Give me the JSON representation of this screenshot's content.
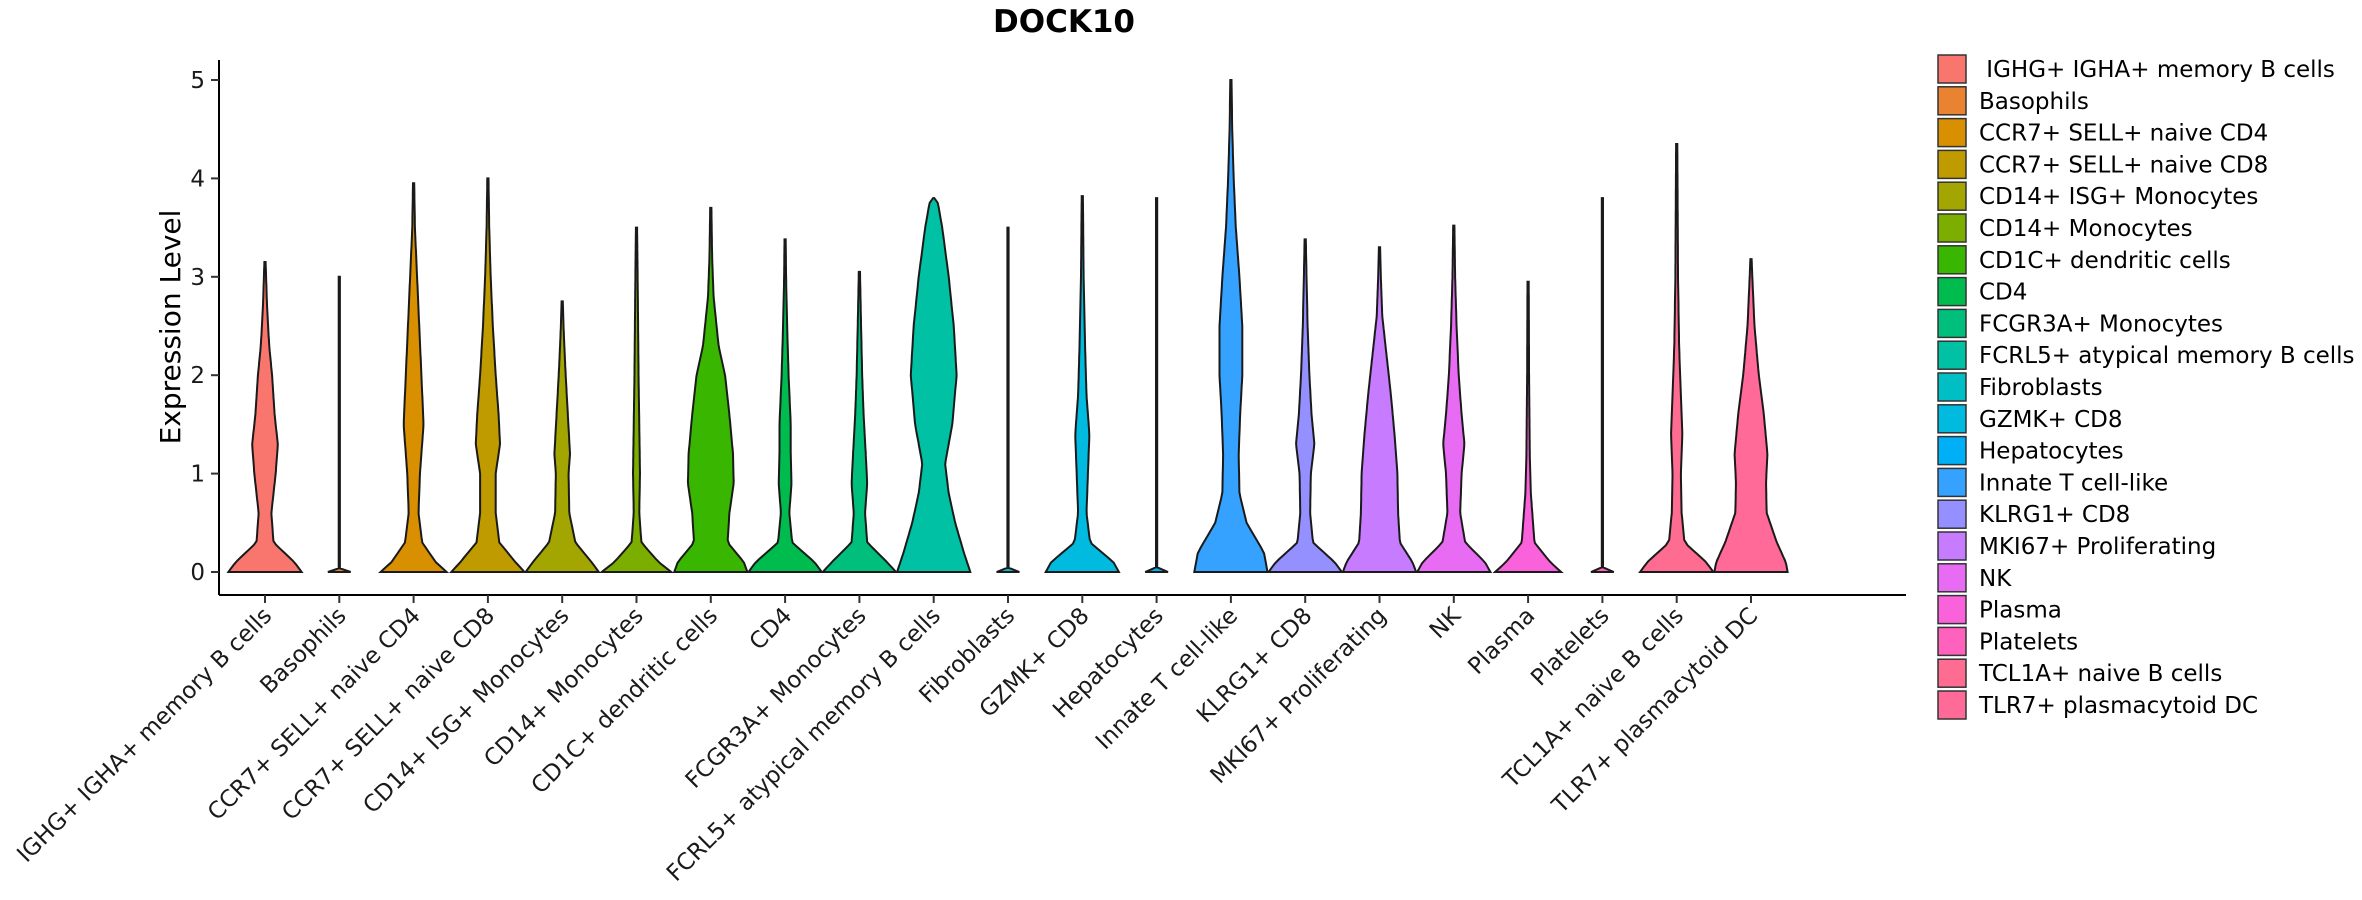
{
  "chart_data": {
    "type": "violin",
    "title": "DOCK10",
    "xlabel": "",
    "ylabel": "Expression Level",
    "ylim": [
      -0.25,
      5.25
    ],
    "yticks": [
      0,
      1,
      2,
      3,
      4,
      5
    ],
    "grid": false,
    "legend_position": "right",
    "categories": [
      "IGHG+ IGHA+ memory B cells",
      "Basophils",
      "CCR7+ SELL+ naive CD4",
      "CCR7+ SELL+ naive CD8",
      "CD14+ ISG+ Monocytes",
      "CD14+ Monocytes",
      "CD1C+ dendritic cells",
      "CD4",
      "FCGR3A+ Monocytes",
      "FCRL5+ atypical memory B cells",
      "Fibroblasts",
      "GZMK+ CD8",
      "Hepatocytes",
      "Innate T cell-like",
      "KLRG1+ CD8",
      "MKI67+ Proliferating",
      "NK",
      "Plasma",
      "Platelets",
      "TCL1A+ naive B cells",
      "TLR7+ plasmacytoid DC"
    ],
    "legend_labels": [
      " IGHG+ IGHA+ memory B cells",
      "Basophils",
      "CCR7+ SELL+ naive CD4",
      "CCR7+ SELL+ naive CD8",
      "CD14+ ISG+ Monocytes",
      "CD14+ Monocytes",
      "CD1C+ dendritic cells",
      "CD4",
      "FCGR3A+ Monocytes",
      "FCRL5+ atypical memory B cells",
      "Fibroblasts",
      "GZMK+ CD8",
      "Hepatocytes",
      "Innate T cell-like",
      "KLRG1+ CD8",
      "MKI67+ Proliferating",
      "NK",
      "Plasma",
      "Platelets",
      "TCL1A+ naive B cells",
      "TLR7+ plasmacytoid DC"
    ],
    "colors": [
      "#F8766D",
      "#EA8331",
      "#D89000",
      "#C09B00",
      "#A3A500",
      "#7CAE00",
      "#39B600",
      "#00BB4E",
      "#00BF7D",
      "#00C1A3",
      "#00BFC4",
      "#00BAE0",
      "#00B0F6",
      "#35A2FF",
      "#9590FF",
      "#C77CFF",
      "#E76BF3",
      "#FA62DB",
      "#FF62BC",
      "#FF6C91",
      "#FF6A98"
    ],
    "series": [
      {
        "name": "IGHG+ IGHA+ memory B cells",
        "max": 3.15,
        "profile": [
          [
            0,
            1.0
          ],
          [
            0.1,
            0.8
          ],
          [
            0.3,
            0.22
          ],
          [
            0.6,
            0.16
          ],
          [
            1.0,
            0.28
          ],
          [
            1.3,
            0.34
          ],
          [
            1.6,
            0.25
          ],
          [
            2.0,
            0.18
          ],
          [
            2.3,
            0.1
          ],
          [
            2.7,
            0.04
          ],
          [
            3.15,
            0.0
          ]
        ]
      },
      {
        "name": "Basophils",
        "max": 3.0,
        "profile": [
          [
            0,
            0.3
          ],
          [
            0.02,
            0.0
          ],
          [
            3.0,
            0.0
          ]
        ]
      },
      {
        "name": "CCR7+ SELL+ naive CD4",
        "max": 3.95,
        "profile": [
          [
            0,
            0.9
          ],
          [
            0.1,
            0.6
          ],
          [
            0.3,
            0.22
          ],
          [
            0.6,
            0.12
          ],
          [
            1.0,
            0.16
          ],
          [
            1.5,
            0.26
          ],
          [
            2.0,
            0.2
          ],
          [
            2.5,
            0.14
          ],
          [
            3.0,
            0.08
          ],
          [
            3.5,
            0.02
          ],
          [
            3.95,
            0.0
          ]
        ]
      },
      {
        "name": "CCR7+ SELL+ naive CD8",
        "max": 4.0,
        "profile": [
          [
            0,
            1.0
          ],
          [
            0.1,
            0.75
          ],
          [
            0.3,
            0.3
          ],
          [
            0.6,
            0.2
          ],
          [
            1.0,
            0.2
          ],
          [
            1.3,
            0.32
          ],
          [
            1.6,
            0.28
          ],
          [
            2.0,
            0.2
          ],
          [
            2.5,
            0.12
          ],
          [
            3.0,
            0.06
          ],
          [
            3.5,
            0.02
          ],
          [
            4.0,
            0.0
          ]
        ]
      },
      {
        "name": "CD14+ ISG+ Monocytes",
        "max": 2.75,
        "profile": [
          [
            0,
            1.0
          ],
          [
            0.1,
            0.8
          ],
          [
            0.3,
            0.35
          ],
          [
            0.6,
            0.18
          ],
          [
            1.0,
            0.16
          ],
          [
            1.2,
            0.2
          ],
          [
            1.6,
            0.14
          ],
          [
            2.0,
            0.08
          ],
          [
            2.4,
            0.03
          ],
          [
            2.75,
            0.0
          ]
        ]
      },
      {
        "name": "CD14+ Monocytes",
        "max": 3.5,
        "profile": [
          [
            0,
            0.95
          ],
          [
            0.1,
            0.6
          ],
          [
            0.3,
            0.12
          ],
          [
            0.6,
            0.06
          ],
          [
            1.0,
            0.08
          ],
          [
            1.5,
            0.06
          ],
          [
            2.0,
            0.04
          ],
          [
            2.8,
            0.02
          ],
          [
            3.5,
            0.0
          ]
        ]
      },
      {
        "name": "CD1C+ dendritic cells",
        "max": 3.7,
        "profile": [
          [
            0,
            1.0
          ],
          [
            0.1,
            0.9
          ],
          [
            0.3,
            0.45
          ],
          [
            0.6,
            0.5
          ],
          [
            0.9,
            0.62
          ],
          [
            1.2,
            0.6
          ],
          [
            1.6,
            0.5
          ],
          [
            2.0,
            0.38
          ],
          [
            2.3,
            0.2
          ],
          [
            2.8,
            0.06
          ],
          [
            3.2,
            0.02
          ],
          [
            3.7,
            0.0
          ]
        ]
      },
      {
        "name": "CD4",
        "max": 3.38,
        "profile": [
          [
            0,
            1.0
          ],
          [
            0.1,
            0.8
          ],
          [
            0.3,
            0.18
          ],
          [
            0.6,
            0.1
          ],
          [
            0.9,
            0.16
          ],
          [
            1.2,
            0.14
          ],
          [
            1.5,
            0.14
          ],
          [
            2.0,
            0.08
          ],
          [
            2.5,
            0.04
          ],
          [
            3.0,
            0.01
          ],
          [
            3.38,
            0.0
          ]
        ]
      },
      {
        "name": "FCGR3A+ Monocytes",
        "max": 3.05,
        "profile": [
          [
            0,
            1.0
          ],
          [
            0.1,
            0.75
          ],
          [
            0.3,
            0.2
          ],
          [
            0.6,
            0.14
          ],
          [
            0.9,
            0.2
          ],
          [
            1.2,
            0.16
          ],
          [
            1.6,
            0.1
          ],
          [
            2.0,
            0.06
          ],
          [
            2.5,
            0.03
          ],
          [
            3.05,
            0.0
          ]
        ]
      },
      {
        "name": "FCRL5+ atypical memory B cells",
        "max": 3.8,
        "profile": [
          [
            0,
            1.0
          ],
          [
            0.2,
            0.82
          ],
          [
            0.5,
            0.58
          ],
          [
            0.8,
            0.4
          ],
          [
            1.1,
            0.3
          ],
          [
            1.5,
            0.5
          ],
          [
            2.0,
            0.62
          ],
          [
            2.5,
            0.54
          ],
          [
            3.0,
            0.4
          ],
          [
            3.5,
            0.22
          ],
          [
            3.75,
            0.1
          ],
          [
            3.8,
            0.0
          ]
        ]
      },
      {
        "name": "Fibroblasts",
        "max": 3.5,
        "profile": [
          [
            0,
            0.3
          ],
          [
            0.02,
            0.0
          ],
          [
            3.5,
            0.0
          ]
        ]
      },
      {
        "name": "GZMK+ CD8",
        "max": 3.82,
        "profile": [
          [
            0,
            1.0
          ],
          [
            0.1,
            0.85
          ],
          [
            0.3,
            0.2
          ],
          [
            0.6,
            0.1
          ],
          [
            1.0,
            0.14
          ],
          [
            1.4,
            0.18
          ],
          [
            1.8,
            0.1
          ],
          [
            2.3,
            0.06
          ],
          [
            3.0,
            0.02
          ],
          [
            3.82,
            0.0
          ]
        ]
      },
      {
        "name": "Hepatocytes",
        "max": 3.8,
        "profile": [
          [
            0,
            0.3
          ],
          [
            0.02,
            0.0
          ],
          [
            3.8,
            0.0
          ]
        ]
      },
      {
        "name": "Innate T cell-like",
        "max": 5.0,
        "profile": [
          [
            0,
            1.0
          ],
          [
            0.2,
            0.9
          ],
          [
            0.5,
            0.42
          ],
          [
            0.8,
            0.22
          ],
          [
            1.2,
            0.2
          ],
          [
            1.6,
            0.24
          ],
          [
            2.0,
            0.3
          ],
          [
            2.5,
            0.3
          ],
          [
            3.0,
            0.22
          ],
          [
            3.5,
            0.12
          ],
          [
            4.0,
            0.06
          ],
          [
            4.5,
            0.02
          ],
          [
            5.0,
            0.0
          ]
        ]
      },
      {
        "name": "KLRG1+ CD8",
        "max": 3.38,
        "profile": [
          [
            0,
            1.0
          ],
          [
            0.1,
            0.8
          ],
          [
            0.3,
            0.2
          ],
          [
            0.6,
            0.12
          ],
          [
            1.0,
            0.14
          ],
          [
            1.3,
            0.24
          ],
          [
            1.6,
            0.16
          ],
          [
            2.0,
            0.1
          ],
          [
            2.5,
            0.05
          ],
          [
            3.0,
            0.02
          ],
          [
            3.38,
            0.0
          ]
        ]
      },
      {
        "name": "MKI67+ Proliferating",
        "max": 3.3,
        "profile": [
          [
            0,
            1.0
          ],
          [
            0.1,
            0.9
          ],
          [
            0.3,
            0.55
          ],
          [
            0.6,
            0.5
          ],
          [
            1.0,
            0.48
          ],
          [
            1.4,
            0.4
          ],
          [
            1.8,
            0.3
          ],
          [
            2.2,
            0.18
          ],
          [
            2.6,
            0.06
          ],
          [
            3.0,
            0.02
          ],
          [
            3.3,
            0.0
          ]
        ]
      },
      {
        "name": "NK",
        "max": 3.52,
        "profile": [
          [
            0,
            1.0
          ],
          [
            0.1,
            0.85
          ],
          [
            0.3,
            0.3
          ],
          [
            0.6,
            0.16
          ],
          [
            1.0,
            0.2
          ],
          [
            1.3,
            0.28
          ],
          [
            1.6,
            0.2
          ],
          [
            2.0,
            0.12
          ],
          [
            2.5,
            0.06
          ],
          [
            3.0,
            0.02
          ],
          [
            3.52,
            0.0
          ]
        ]
      },
      {
        "name": "Plasma",
        "max": 2.95,
        "profile": [
          [
            0,
            0.9
          ],
          [
            0.1,
            0.6
          ],
          [
            0.3,
            0.16
          ],
          [
            0.5,
            0.12
          ],
          [
            0.8,
            0.06
          ],
          [
            1.2,
            0.03
          ],
          [
            2.0,
            0.01
          ],
          [
            2.95,
            0.0
          ]
        ]
      },
      {
        "name": "Platelets",
        "max": 3.8,
        "profile": [
          [
            0,
            0.3
          ],
          [
            0.02,
            0.0
          ],
          [
            3.8,
            0.0
          ]
        ]
      },
      {
        "name": "TCL1A+ naive B cells",
        "max": 4.35,
        "profile": [
          [
            0,
            1.0
          ],
          [
            0.1,
            0.8
          ],
          [
            0.3,
            0.2
          ],
          [
            0.6,
            0.12
          ],
          [
            1.0,
            0.1
          ],
          [
            1.4,
            0.14
          ],
          [
            1.8,
            0.1
          ],
          [
            2.3,
            0.05
          ],
          [
            3.0,
            0.02
          ],
          [
            4.35,
            0.0
          ]
        ]
      },
      {
        "name": "TLR7+ plasmacytoid DC",
        "max": 3.18,
        "profile": [
          [
            0,
            1.0
          ],
          [
            0.1,
            0.95
          ],
          [
            0.3,
            0.7
          ],
          [
            0.6,
            0.42
          ],
          [
            0.9,
            0.4
          ],
          [
            1.2,
            0.44
          ],
          [
            1.6,
            0.34
          ],
          [
            2.0,
            0.2
          ],
          [
            2.5,
            0.08
          ],
          [
            3.0,
            0.02
          ],
          [
            3.18,
            0.0
          ]
        ]
      }
    ]
  }
}
